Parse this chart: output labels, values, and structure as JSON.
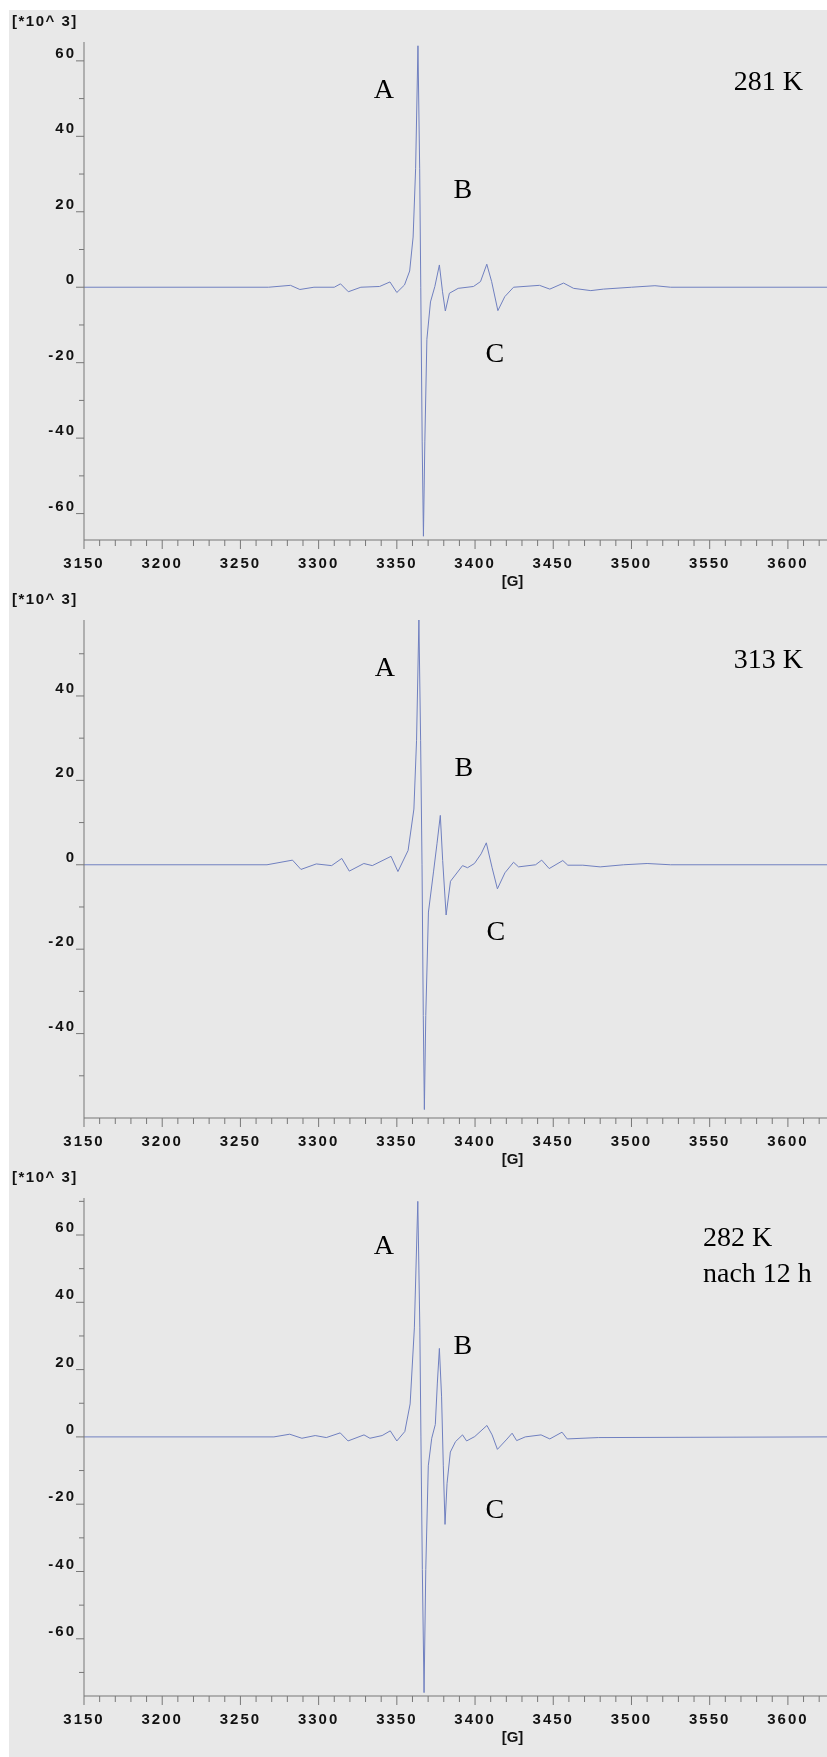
{
  "chart_data": [
    {
      "type": "line",
      "title": "281 K",
      "xlabel": "[G]",
      "ylabel": "[*10^ 3]",
      "grid": false,
      "marker": "none",
      "line_style": "solid",
      "xlim": [
        3150,
        3625
      ],
      "ylim": [
        -67,
        65
      ],
      "xticks": [
        3150,
        {
          "value": 3160,
          "label": null
        },
        {
          "value": 3170,
          "label": null
        },
        {
          "value": 3180,
          "label": null
        },
        {
          "value": 3190,
          "label": null
        },
        3200,
        {
          "value": 3210,
          "label": null
        },
        {
          "value": 3220,
          "label": null
        },
        {
          "value": 3230,
          "label": null
        },
        {
          "value": 3240,
          "label": null
        },
        3250,
        {
          "value": 3260,
          "label": null
        },
        {
          "value": 3270,
          "label": null
        },
        {
          "value": 3280,
          "label": null
        },
        {
          "value": 3290,
          "label": null
        },
        3300,
        {
          "value": 3310,
          "label": null
        },
        {
          "value": 3320,
          "label": null
        },
        {
          "value": 3330,
          "label": null
        },
        {
          "value": 3340,
          "label": null
        },
        3350,
        {
          "value": 3360,
          "label": null
        },
        {
          "value": 3370,
          "label": null
        },
        {
          "value": 3380,
          "label": null
        },
        {
          "value": 3390,
          "label": null
        },
        3400,
        {
          "value": 3410,
          "label": null
        },
        {
          "value": 3420,
          "label": null
        },
        {
          "value": 3430,
          "label": null
        },
        {
          "value": 3440,
          "label": null
        },
        3450,
        {
          "value": 3460,
          "label": null
        },
        {
          "value": 3470,
          "label": null
        },
        {
          "value": 3480,
          "label": null
        },
        {
          "value": 3490,
          "label": null
        },
        3500,
        {
          "value": 3510,
          "label": null
        },
        {
          "value": 3520,
          "label": null
        },
        {
          "value": 3530,
          "label": null
        },
        {
          "value": 3540,
          "label": null
        },
        3550,
        {
          "value": 3560,
          "label": null
        },
        {
          "value": 3570,
          "label": null
        },
        {
          "value": 3580,
          "label": null
        },
        {
          "value": 3590,
          "label": null
        },
        3600,
        {
          "value": 3610,
          "label": null
        },
        {
          "value": 3620,
          "label": null
        }
      ],
      "yticks": [
        -60,
        {
          "value": -50,
          "label": null
        },
        -40,
        {
          "value": -30,
          "label": null
        },
        -20,
        {
          "value": -10,
          "label": null
        },
        0,
        {
          "value": 10,
          "label": null
        },
        20,
        {
          "value": 30,
          "label": null
        },
        40,
        {
          "value": 50,
          "label": null
        },
        60
      ],
      "annotations": [
        "A",
        "B",
        "C"
      ],
      "series": [
        {
          "color": "#7080c0",
          "x": [
            3150,
            3268,
            3282,
            3288,
            3297,
            3310,
            3314,
            3319,
            3327,
            3339,
            3345.6,
            3350,
            3354.9,
            3358.2,
            3360.4,
            3362,
            3363.5,
            3364.6,
            3365.3,
            3366.2,
            3367,
            3367.9,
            3369.2,
            3371.5,
            3374.3,
            3377.2,
            3379.2,
            3381,
            3383.6,
            3389.2,
            3399,
            3403.5,
            3407.5,
            3410.6,
            3414.6,
            3419,
            3424.6,
            3441.2,
            3447.8,
            3456.6,
            3463,
            3474,
            3482,
            3500,
            3515,
            3525,
            3625
          ],
          "values": [
            0,
            0,
            0.5,
            -0.6,
            0,
            0,
            0.9,
            -1.2,
            0,
            0.2,
            1.4,
            -1.4,
            0.6,
            4.3,
            13.3,
            31.4,
            64,
            31.4,
            0,
            -41,
            -66,
            -41,
            -13.8,
            -3.9,
            0.2,
            5.9,
            -1.2,
            -6.3,
            -1.6,
            -0.3,
            0.2,
            1.5,
            6.1,
            1.5,
            -6.2,
            -2.5,
            0,
            0.5,
            -0.5,
            1.1,
            -0.3,
            -0.9,
            -0.5,
            0,
            0.4,
            0,
            0
          ]
        }
      ]
    },
    {
      "type": "line",
      "title": "313 K",
      "xlabel": "[G]",
      "ylabel": "[*10^ 3]",
      "grid": false,
      "marker": "none",
      "line_style": "solid",
      "xlim": [
        3150,
        3625
      ],
      "ylim": [
        -60,
        58
      ],
      "xticks": [
        3150,
        {
          "value": 3160,
          "label": null
        },
        {
          "value": 3170,
          "label": null
        },
        {
          "value": 3180,
          "label": null
        },
        {
          "value": 3190,
          "label": null
        },
        3200,
        {
          "value": 3210,
          "label": null
        },
        {
          "value": 3220,
          "label": null
        },
        {
          "value": 3230,
          "label": null
        },
        {
          "value": 3240,
          "label": null
        },
        3250,
        {
          "value": 3260,
          "label": null
        },
        {
          "value": 3270,
          "label": null
        },
        {
          "value": 3280,
          "label": null
        },
        {
          "value": 3290,
          "label": null
        },
        3300,
        {
          "value": 3310,
          "label": null
        },
        {
          "value": 3320,
          "label": null
        },
        {
          "value": 3330,
          "label": null
        },
        {
          "value": 3340,
          "label": null
        },
        3350,
        {
          "value": 3360,
          "label": null
        },
        {
          "value": 3370,
          "label": null
        },
        {
          "value": 3380,
          "label": null
        },
        {
          "value": 3390,
          "label": null
        },
        3400,
        {
          "value": 3410,
          "label": null
        },
        {
          "value": 3420,
          "label": null
        },
        {
          "value": 3430,
          "label": null
        },
        {
          "value": 3440,
          "label": null
        },
        3450,
        {
          "value": 3460,
          "label": null
        },
        {
          "value": 3470,
          "label": null
        },
        {
          "value": 3480,
          "label": null
        },
        {
          "value": 3490,
          "label": null
        },
        3500,
        {
          "value": 3510,
          "label": null
        },
        {
          "value": 3520,
          "label": null
        },
        {
          "value": 3530,
          "label": null
        },
        {
          "value": 3540,
          "label": null
        },
        3550,
        {
          "value": 3560,
          "label": null
        },
        {
          "value": 3570,
          "label": null
        },
        {
          "value": 3580,
          "label": null
        },
        {
          "value": 3590,
          "label": null
        },
        3600,
        {
          "value": 3610,
          "label": null
        },
        {
          "value": 3620,
          "label": null
        }
      ],
      "yticks": [
        {
          "value": -50,
          "label": null
        },
        -40,
        {
          "value": -30,
          "label": null
        },
        -20,
        {
          "value": -10,
          "label": null
        },
        0,
        {
          "value": 10,
          "label": null
        },
        20,
        {
          "value": 30,
          "label": null
        },
        40,
        {
          "value": 50,
          "label": null
        }
      ],
      "annotations": [
        "A",
        "B",
        "C"
      ],
      "series": [
        {
          "color": "#7080c0",
          "x": [
            3150,
            3267,
            3283.3,
            3288.7,
            3298.5,
            3308.3,
            3314.8,
            3319.6,
            3328.9,
            3334.3,
            3346.3,
            3350.7,
            3357.2,
            3360.9,
            3362.6,
            3364.1,
            3365.2,
            3366.1,
            3366.9,
            3367.6,
            3368.5,
            3370.2,
            3373.5,
            3375.7,
            3377.8,
            3379.3,
            3381.5,
            3384.3,
            3392,
            3395.2,
            3399.6,
            3403.9,
            3407.2,
            3410.9,
            3414.3,
            3419.1,
            3424.6,
            3427.8,
            3438.7,
            3442.6,
            3447.4,
            3456.1,
            3459.3,
            3468.9,
            3480,
            3495,
            3510,
            3525,
            3625
          ],
          "values": [
            0,
            0,
            1.1,
            -1.1,
            0.2,
            -0.2,
            1.5,
            -1.5,
            0.3,
            -0.2,
            2,
            -1.6,
            3.4,
            13.2,
            29.5,
            58,
            29.5,
            0,
            -35.7,
            -58,
            -35.7,
            -11.2,
            -1.5,
            5.1,
            11.7,
            1,
            -11.9,
            -3.9,
            -0.2,
            -0.7,
            0.3,
            2.6,
            5.2,
            -0.7,
            -5.7,
            -1.9,
            0.6,
            -0.5,
            0,
            1.1,
            -0.9,
            1,
            -0.1,
            -0.1,
            -0.5,
            0,
            0.3,
            0,
            0
          ]
        }
      ]
    },
    {
      "type": "line",
      "title": "282 K",
      "subtitle": "nach 12 h",
      "xlabel": "[G]",
      "ylabel": "[*10^ 3]",
      "grid": false,
      "marker": "none",
      "line_style": "solid",
      "xlim": [
        3150,
        3625
      ],
      "ylim": [
        -77,
        71
      ],
      "xticks": [
        3150,
        {
          "value": 3160,
          "label": null
        },
        {
          "value": 3170,
          "label": null
        },
        {
          "value": 3180,
          "label": null
        },
        {
          "value": 3190,
          "label": null
        },
        3200,
        {
          "value": 3210,
          "label": null
        },
        {
          "value": 3220,
          "label": null
        },
        {
          "value": 3230,
          "label": null
        },
        {
          "value": 3240,
          "label": null
        },
        3250,
        {
          "value": 3260,
          "label": null
        },
        {
          "value": 3270,
          "label": null
        },
        {
          "value": 3280,
          "label": null
        },
        {
          "value": 3290,
          "label": null
        },
        3300,
        {
          "value": 3310,
          "label": null
        },
        {
          "value": 3320,
          "label": null
        },
        {
          "value": 3330,
          "label": null
        },
        {
          "value": 3340,
          "label": null
        },
        3350,
        {
          "value": 3360,
          "label": null
        },
        {
          "value": 3370,
          "label": null
        },
        {
          "value": 3380,
          "label": null
        },
        {
          "value": 3390,
          "label": null
        },
        3400,
        {
          "value": 3410,
          "label": null
        },
        {
          "value": 3420,
          "label": null
        },
        {
          "value": 3430,
          "label": null
        },
        {
          "value": 3440,
          "label": null
        },
        3450,
        {
          "value": 3460,
          "label": null
        },
        {
          "value": 3470,
          "label": null
        },
        {
          "value": 3480,
          "label": null
        },
        {
          "value": 3490,
          "label": null
        },
        3500,
        {
          "value": 3510,
          "label": null
        },
        {
          "value": 3520,
          "label": null
        },
        {
          "value": 3530,
          "label": null
        },
        {
          "value": 3540,
          "label": null
        },
        3550,
        {
          "value": 3560,
          "label": null
        },
        {
          "value": 3570,
          "label": null
        },
        {
          "value": 3580,
          "label": null
        },
        {
          "value": 3590,
          "label": null
        },
        3600,
        {
          "value": 3610,
          "label": null
        },
        {
          "value": 3620,
          "label": null
        }
      ],
      "yticks": [
        {
          "value": -70,
          "label": null
        },
        -60,
        {
          "value": -50,
          "label": null
        },
        -40,
        {
          "value": -30,
          "label": null
        },
        -20,
        {
          "value": -10,
          "label": null
        },
        0,
        {
          "value": 10,
          "label": null
        },
        20,
        {
          "value": 30,
          "label": null
        },
        40,
        {
          "value": 50,
          "label": null
        },
        60,
        {
          "value": 70,
          "label": null
        }
      ],
      "annotations": [
        "A",
        "B",
        "C"
      ],
      "series": [
        {
          "color": "#7080c0",
          "x": [
            3150,
            3271.4,
            3281.5,
            3289.3,
            3297.8,
            3304.9,
            3313.8,
            3318.8,
            3329,
            3332.8,
            3340.6,
            3345.8,
            3350,
            3355.1,
            3358.5,
            3361.2,
            3363.4,
            3364.7,
            3365.4,
            3366.3,
            3367.4,
            3368.5,
            3370.1,
            3372.3,
            3374.6,
            3375.9,
            3377.2,
            3378.6,
            3379.7,
            3380.8,
            3382.1,
            3384.2,
            3387.5,
            3392,
            3394.6,
            3399.8,
            3407.6,
            3410.9,
            3414.3,
            3419.9,
            3423.7,
            3426.6,
            3432.1,
            3442.2,
            3447.8,
            3455.6,
            3458.9,
            3478.8,
            3625
          ],
          "values": [
            0,
            0,
            0.8,
            -0.4,
            0.4,
            -0.2,
            1.2,
            -1.2,
            0.6,
            -0.4,
            0.4,
            1.8,
            -1.2,
            1.6,
            9.8,
            32.4,
            70,
            32.4,
            0,
            -39.4,
            -76,
            -39.4,
            -8.6,
            -0.4,
            3.7,
            16,
            26.3,
            11.9,
            -8.6,
            -26,
            -13.8,
            -4.5,
            -1.4,
            0.6,
            -1.2,
            0.1,
            3.4,
            0.6,
            -3.7,
            -0.9,
            1.1,
            -1.1,
            0,
            0.6,
            -0.6,
            1.4,
            -0.6,
            -0.2,
            0
          ]
        }
      ]
    }
  ]
}
